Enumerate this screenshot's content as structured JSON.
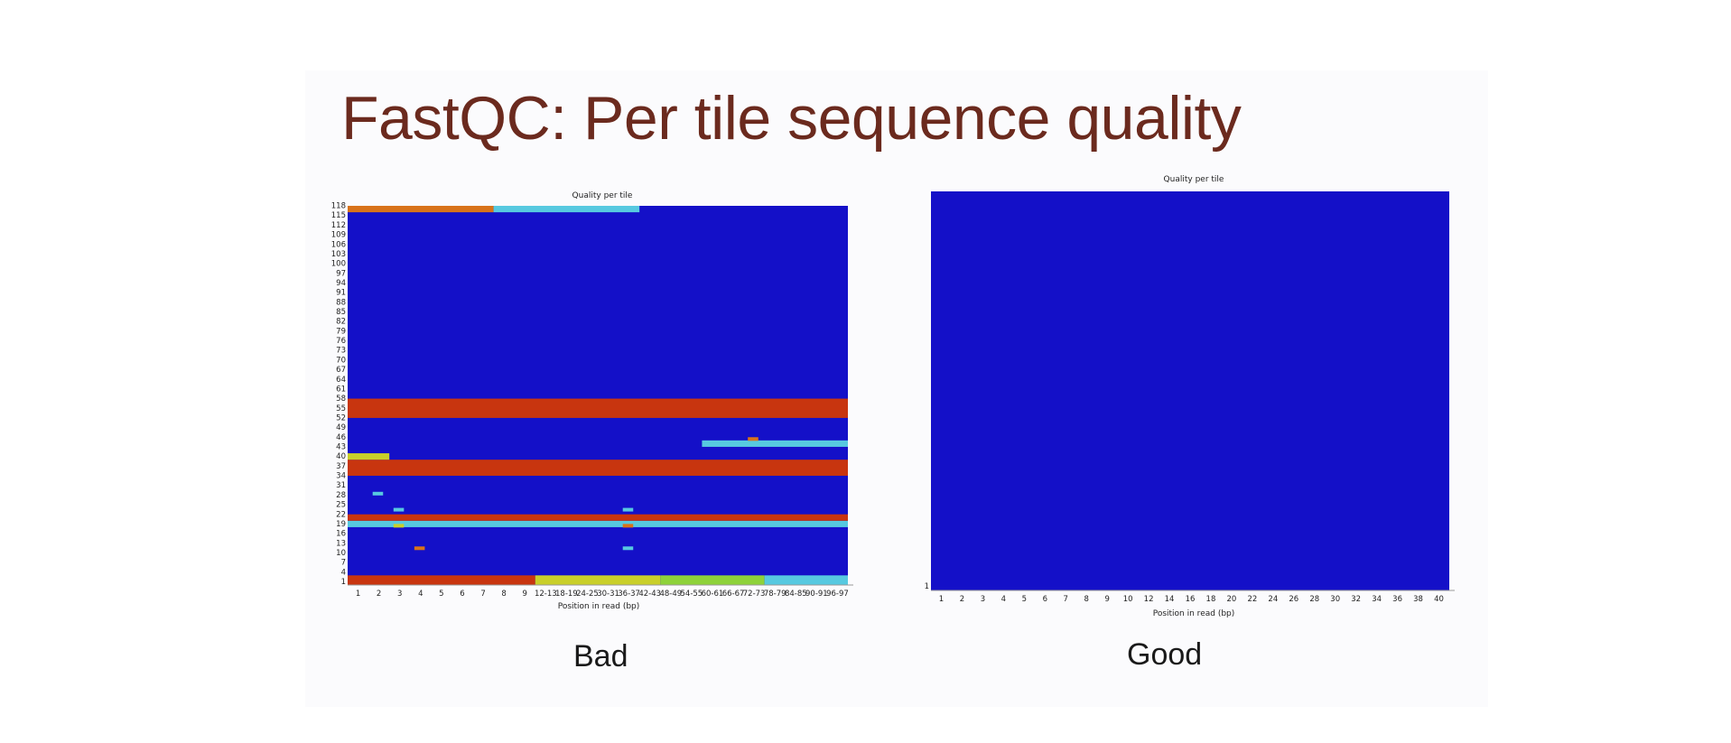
{
  "slide": {
    "title": "FastQC: Per tile sequence quality",
    "captions": {
      "bad": "Bad",
      "good": "Good"
    }
  },
  "colors": {
    "blue": "#1410c8",
    "red": "#c8350f",
    "orange": "#d8731a",
    "yellow": "#c9cf2a",
    "green": "#8ed23a",
    "cyan": "#57c9e0",
    "title_color": "#6b2a1e"
  },
  "chart_data": [
    {
      "type": "heatmap",
      "id": "bad",
      "title": "Quality per tile",
      "xlabel": "Position in read (bp)",
      "ylabel": "",
      "x_ticks": [
        "1",
        "2",
        "3",
        "4",
        "5",
        "6",
        "7",
        "8",
        "9",
        "12-13",
        "18-19",
        "24-25",
        "30-31",
        "36-37",
        "42-43",
        "48-49",
        "54-55",
        "60-61",
        "66-67",
        "72-73",
        "78-79",
        "84-85",
        "90-91",
        "96-97"
      ],
      "y_ticks": [
        "1",
        "4",
        "7",
        "10",
        "13",
        "16",
        "19",
        "22",
        "25",
        "28",
        "31",
        "34",
        "37",
        "40",
        "43",
        "46",
        "49",
        "52",
        "55",
        "58",
        "61",
        "64",
        "67",
        "70",
        "73",
        "76",
        "79",
        "82",
        "85",
        "88",
        "91",
        "94",
        "97",
        "100",
        "103",
        "106",
        "109",
        "112",
        "115",
        "118"
      ],
      "default_color": "blue",
      "bands": [
        {
          "tiles": [
            1,
            3
          ],
          "from_col": 0,
          "to_col": 9,
          "color": "red"
        },
        {
          "tiles": [
            1,
            3
          ],
          "from_col": 9,
          "to_col": 15,
          "color": "yellow"
        },
        {
          "tiles": [
            1,
            3
          ],
          "from_col": 15,
          "to_col": 20,
          "color": "green"
        },
        {
          "tiles": [
            1,
            3
          ],
          "from_col": 20,
          "to_col": 24,
          "color": "cyan"
        },
        {
          "tiles": [
            19,
            20
          ],
          "from_col": 0,
          "to_col": 24,
          "color": "cyan"
        },
        {
          "tiles": [
            21,
            22
          ],
          "from_col": 0,
          "to_col": 24,
          "color": "red"
        },
        {
          "tiles": [
            35,
            39
          ],
          "from_col": 0,
          "to_col": 24,
          "color": "red"
        },
        {
          "tiles": [
            40,
            41
          ],
          "from_col": 0,
          "to_col": 2,
          "color": "yellow"
        },
        {
          "tiles": [
            44,
            45
          ],
          "from_col": 17,
          "to_col": 24,
          "color": "cyan"
        },
        {
          "tiles": [
            53,
            58
          ],
          "from_col": 0,
          "to_col": 24,
          "color": "red"
        },
        {
          "tiles": [
            117,
            118
          ],
          "from_col": 0,
          "to_col": 7,
          "color": "orange"
        },
        {
          "tiles": [
            117,
            118
          ],
          "from_col": 7,
          "to_col": 14,
          "color": "cyan"
        }
      ],
      "spots": [
        {
          "tile": 12,
          "col": 3,
          "color": "orange"
        },
        {
          "tile": 12,
          "col": 13,
          "color": "cyan"
        },
        {
          "tile": 19,
          "col": 2,
          "color": "yellow"
        },
        {
          "tile": 19,
          "col": 13,
          "color": "orange"
        },
        {
          "tile": 24,
          "col": 2,
          "color": "cyan"
        },
        {
          "tile": 24,
          "col": 13,
          "color": "cyan"
        },
        {
          "tile": 29,
          "col": 1,
          "color": "cyan"
        },
        {
          "tile": 46,
          "col": 19,
          "color": "orange"
        }
      ]
    },
    {
      "type": "heatmap",
      "id": "good",
      "title": "Quality per tile",
      "xlabel": "Position in read (bp)",
      "ylabel": "",
      "x_ticks": [
        "1",
        "2",
        "3",
        "4",
        "5",
        "6",
        "7",
        "8",
        "9",
        "10",
        "12",
        "14",
        "16",
        "18",
        "20",
        "22",
        "24",
        "26",
        "28",
        "30",
        "32",
        "34",
        "36",
        "38",
        "40"
      ],
      "y_ticks": [
        "1"
      ],
      "default_color": "blue",
      "bands": [],
      "spots": []
    }
  ]
}
